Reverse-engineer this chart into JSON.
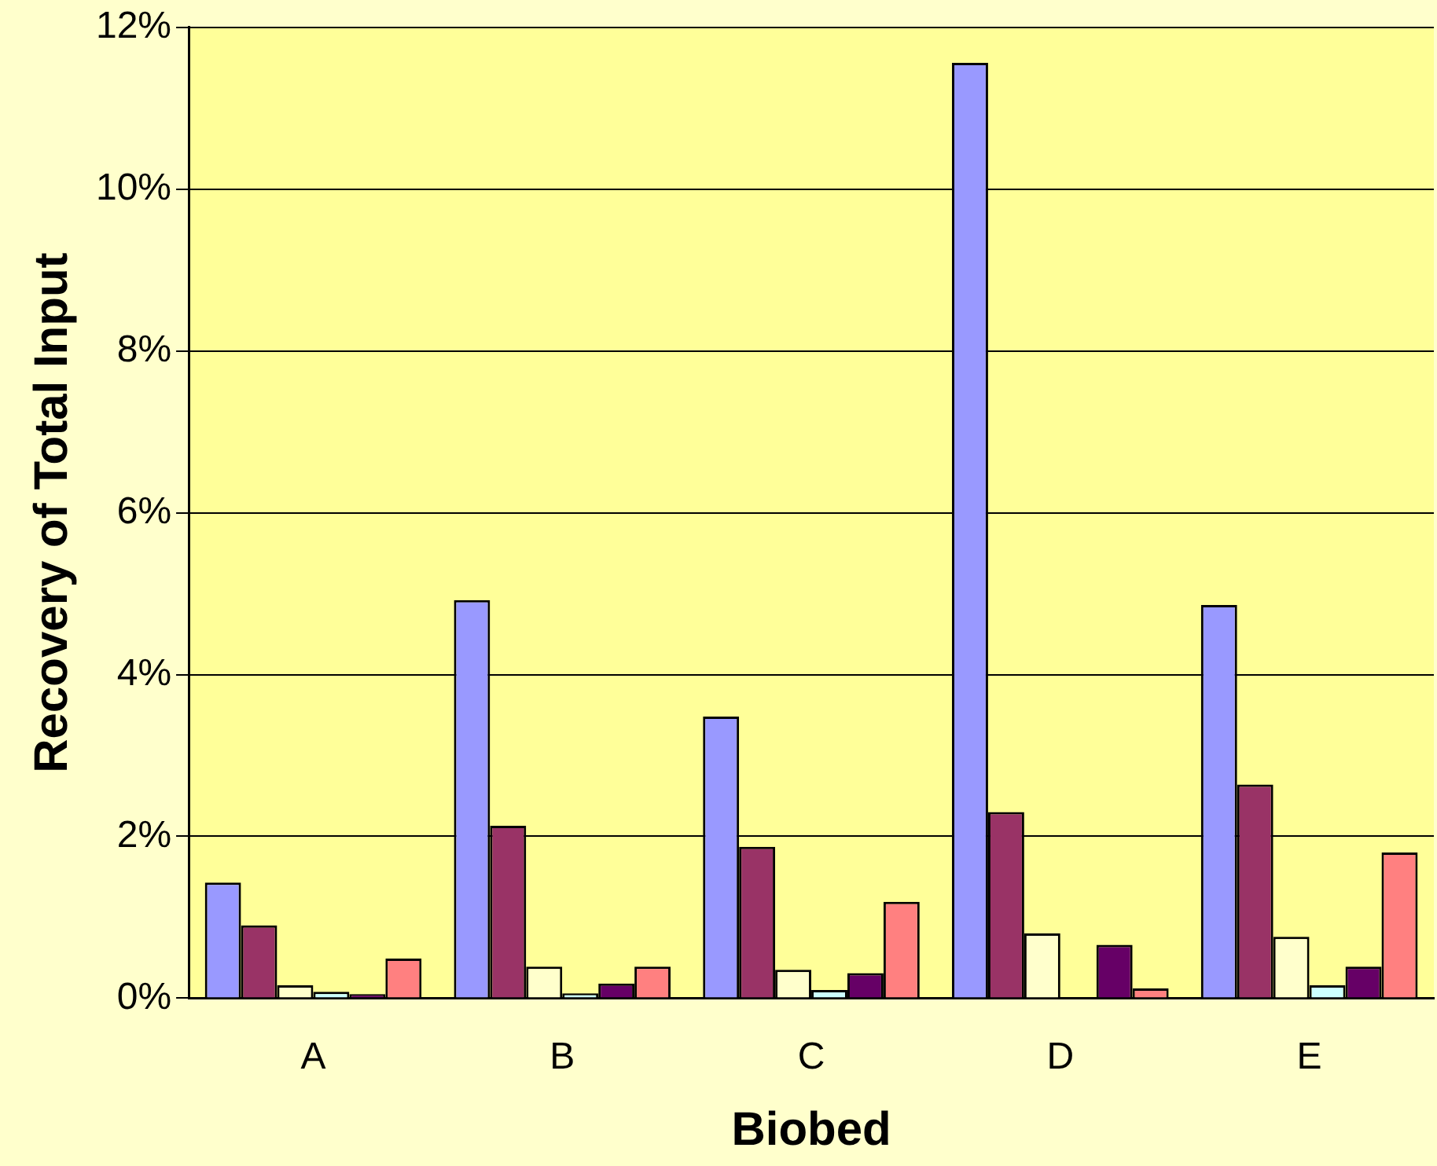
{
  "chart_data": {
    "type": "bar",
    "xlabel": "Biobed",
    "ylabel": "Recovery of Total Input",
    "categories": [
      "A",
      "B",
      "C",
      "D",
      "E"
    ],
    "series": [
      {
        "color": "#9999ff",
        "values": [
          1.43,
          4.92,
          3.48,
          11.56,
          4.86
        ]
      },
      {
        "color": "#993366",
        "values": [
          0.9,
          2.13,
          1.87,
          2.3,
          2.64
        ]
      },
      {
        "color": "#ffffcc",
        "values": [
          0.16,
          0.39,
          0.35,
          0.8,
          0.76
        ]
      },
      {
        "color": "#ccffff",
        "values": [
          0.08,
          0.06,
          0.1,
          0,
          0.16
        ]
      },
      {
        "color": "#660066",
        "values": [
          0.05,
          0.18,
          0.31,
          0.66,
          0.39
        ]
      },
      {
        "color": "#ff8080",
        "values": [
          0.49,
          0.39,
          1.19,
          0.12,
          1.8
        ]
      }
    ],
    "ylim": [
      0,
      12
    ],
    "yticks": [
      {
        "value": 0,
        "label": "0%"
      },
      {
        "value": 2,
        "label": "2%"
      },
      {
        "value": 4,
        "label": "4%"
      },
      {
        "value": 6,
        "label": "6%"
      },
      {
        "value": 8,
        "label": "8%"
      },
      {
        "value": 10,
        "label": "10%"
      },
      {
        "value": 12,
        "label": "12%"
      }
    ],
    "grid": "y",
    "legend": false
  }
}
